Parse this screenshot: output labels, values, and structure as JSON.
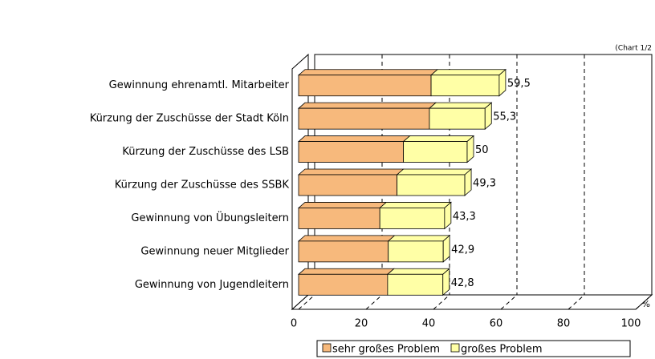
{
  "chart_data": {
    "type": "bar3d-stacked-horizontal",
    "annotation": "(Chart 1/2",
    "x_label": "%",
    "categories": [
      "Gewinnung ehrenamtl. Mitarbeiter",
      "Kürzung der Zuschüsse der Stadt Köln",
      "Kürzung der Zuschüsse des LSB",
      "Kürzung der Zuschüsse des SSBK",
      "Gewinnung von Übungsleitern",
      "Gewinnung neuer Mitglieder",
      "Gewinnung von Jugendleitern"
    ],
    "series": [
      {
        "name": "sehr großes Problem",
        "color": "#f7b97c",
        "values": [
          39.3,
          38.8,
          31.1,
          29.2,
          24.1,
          26.6,
          26.4
        ]
      },
      {
        "name": "großes Problem",
        "color": "#ffffa6",
        "values": [
          20.2,
          16.5,
          18.9,
          20.1,
          19.2,
          16.3,
          16.4
        ]
      }
    ],
    "totals": [
      59.5,
      55.3,
      50,
      49.3,
      43.3,
      42.9,
      42.8
    ],
    "total_labels": [
      "59,5",
      "55,3",
      "50",
      "49,3",
      "43,3",
      "42,9",
      "42,8"
    ],
    "xlim": [
      0,
      100
    ],
    "xticks": [
      0,
      20,
      40,
      60,
      80,
      100
    ],
    "grid": true
  }
}
